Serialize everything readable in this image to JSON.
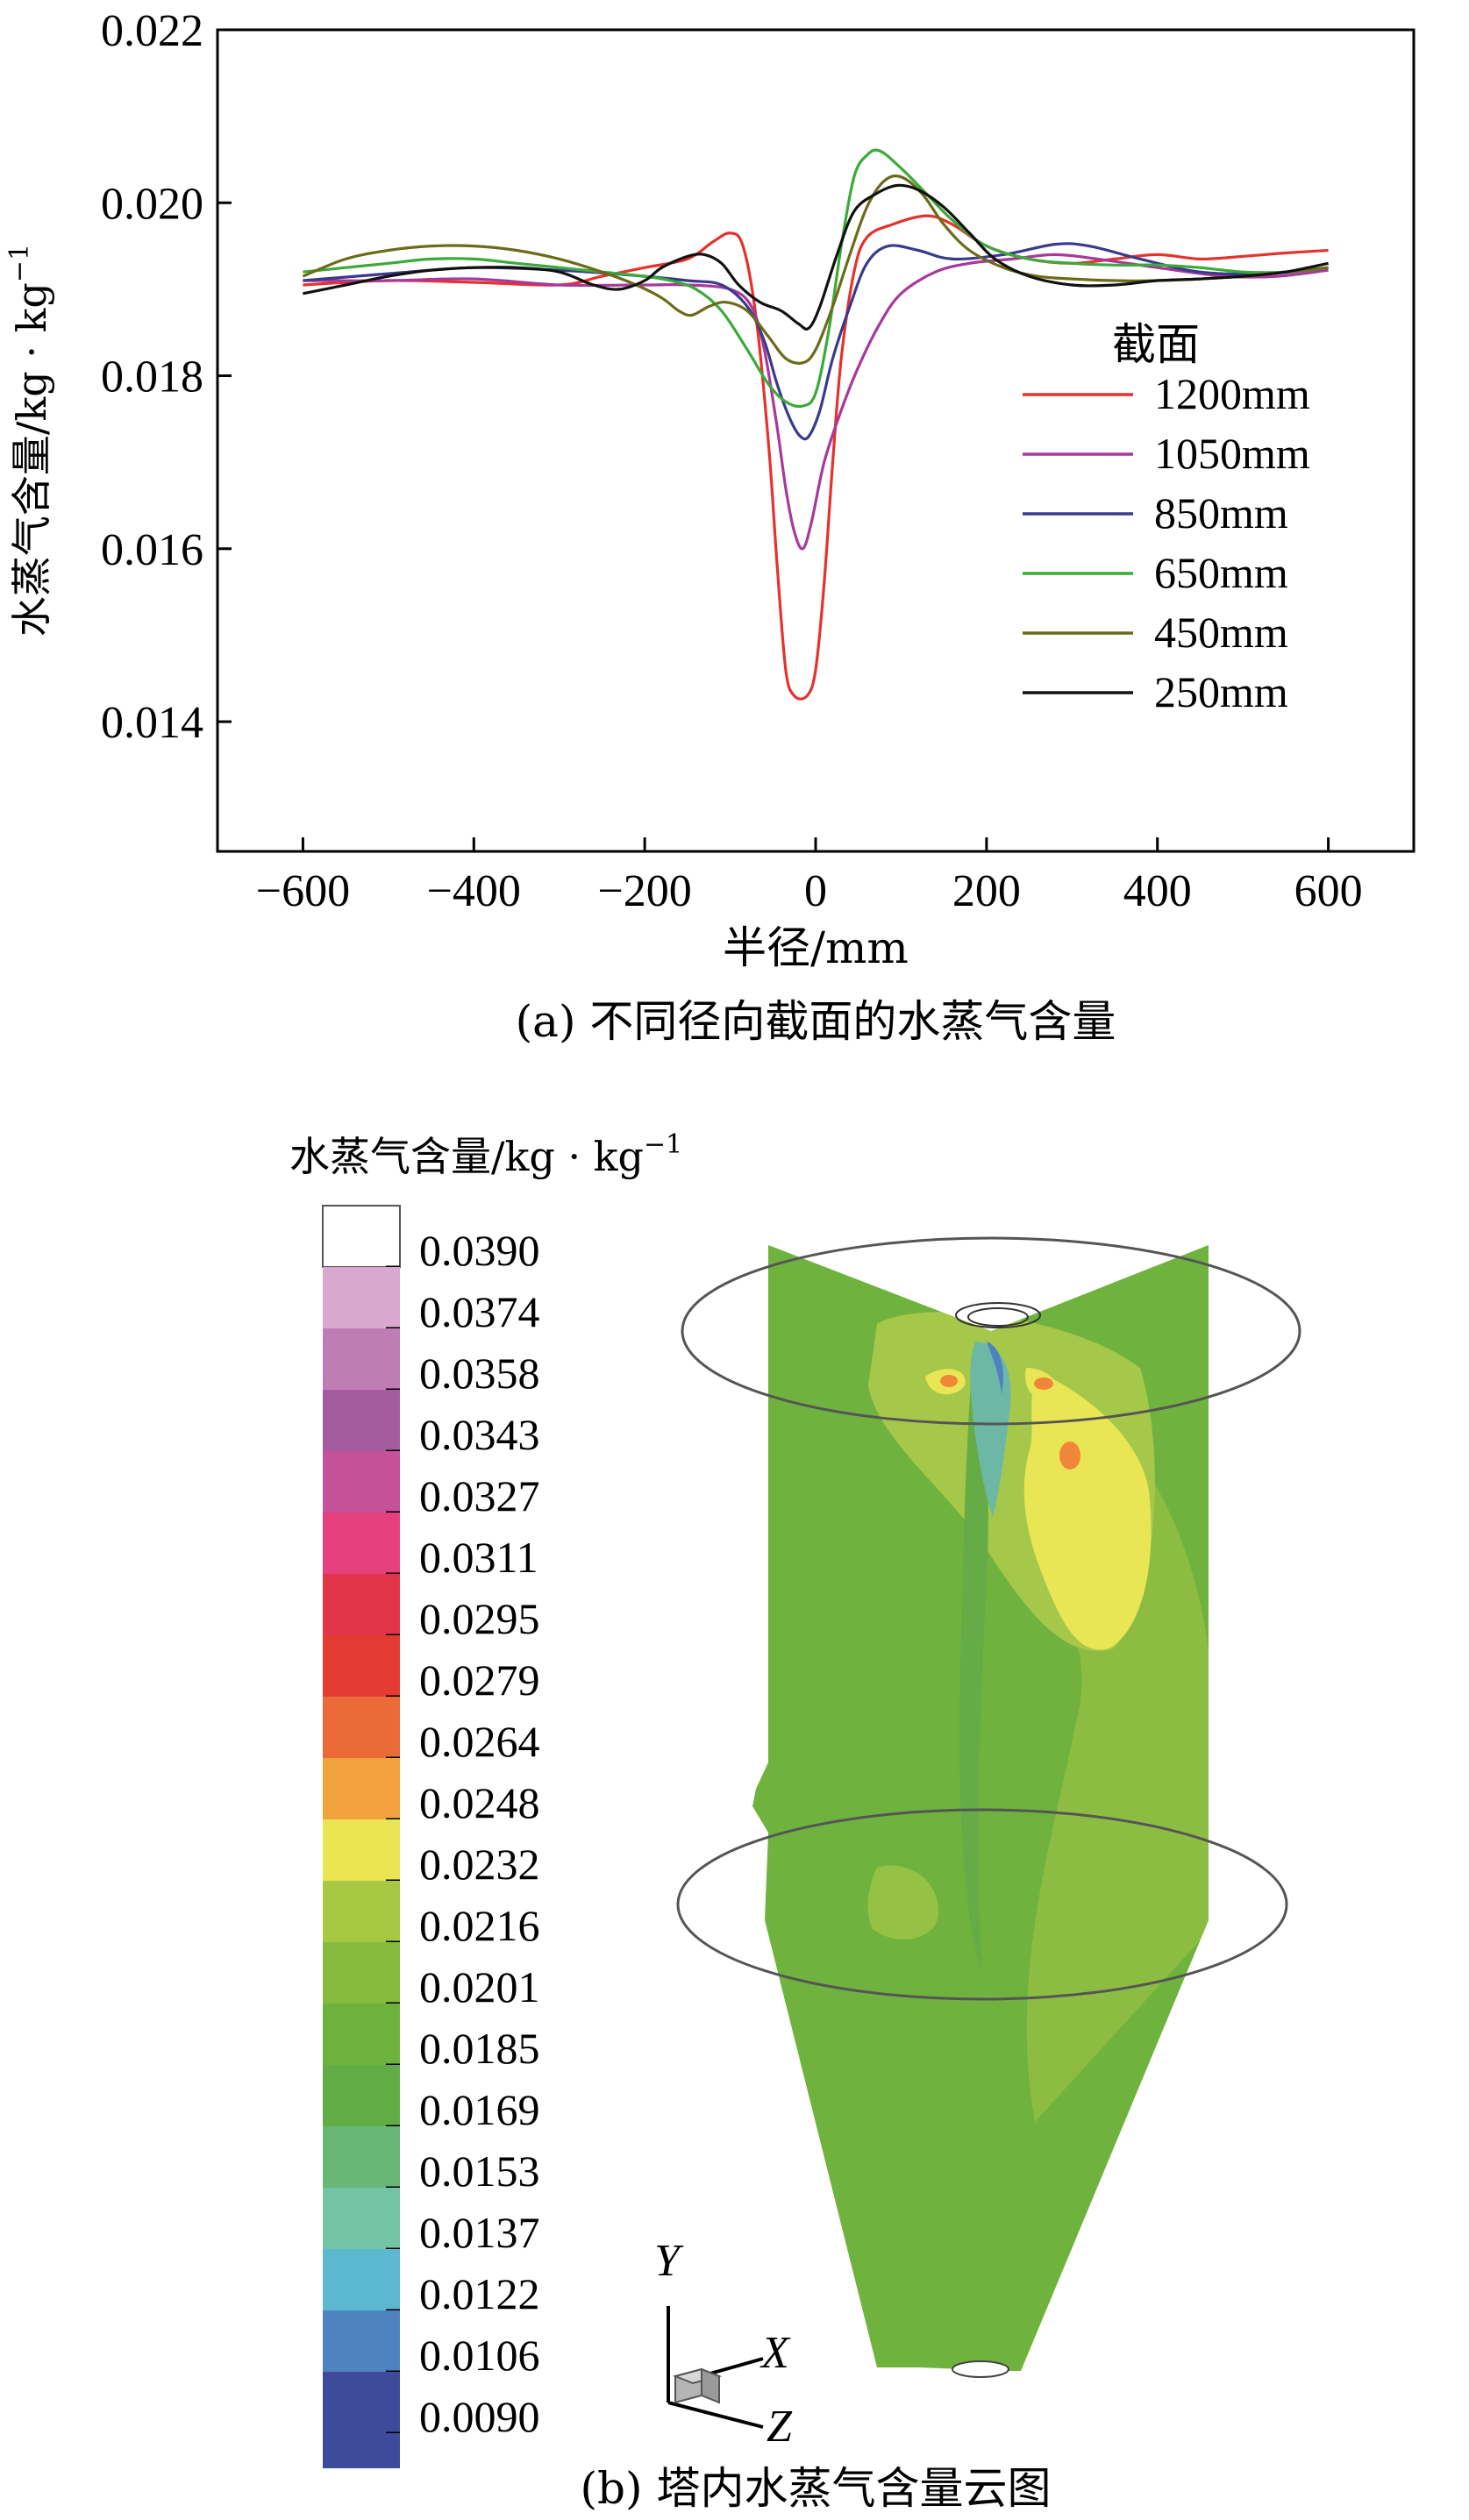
{
  "chart_data": [
    {
      "type": "line",
      "title": "",
      "caption": "(a) 不同径向截面的水蒸气含量",
      "xlabel": "半径/mm",
      "ylabel_main": "水蒸气含量/kg · kg",
      "ylabel_sup": "−1",
      "xlim": [
        -700,
        700
      ],
      "ylim": [
        0.0125,
        0.022
      ],
      "xticks": [
        {
          "value": -600,
          "label": "−600"
        },
        {
          "value": -400,
          "label": "−400"
        },
        {
          "value": -200,
          "label": "−200"
        },
        {
          "value": 0,
          "label": "0"
        },
        {
          "value": 200,
          "label": "200"
        },
        {
          "value": 400,
          "label": "400"
        },
        {
          "value": 600,
          "label": "600"
        }
      ],
      "yticks": [
        {
          "value": 0.014,
          "label": "0.014"
        },
        {
          "value": 0.016,
          "label": "0.016"
        },
        {
          "value": 0.018,
          "label": "0.018"
        },
        {
          "value": 0.02,
          "label": "0.020"
        },
        {
          "value": 0.022,
          "label": "0.022"
        }
      ],
      "grid": false,
      "legend_position": "right",
      "legend_title": "截面",
      "series": [
        {
          "name": "1200mm",
          "color": "#e5322d",
          "points": [
            [
              -600,
              0.01905
            ],
            [
              -500,
              0.0191
            ],
            [
              -400,
              0.01908
            ],
            [
              -300,
              0.01905
            ],
            [
              -250,
              0.01915
            ],
            [
              -200,
              0.01925
            ],
            [
              -150,
              0.01935
            ],
            [
              -120,
              0.01955
            ],
            [
              -100,
              0.01965
            ],
            [
              -85,
              0.0195
            ],
            [
              -70,
              0.0187
            ],
            [
              -55,
              0.0172
            ],
            [
              -45,
              0.0158
            ],
            [
              -35,
              0.0146
            ],
            [
              -25,
              0.0143
            ],
            [
              -10,
              0.0143
            ],
            [
              0,
              0.0146
            ],
            [
              10,
              0.0156
            ],
            [
              20,
              0.017
            ],
            [
              30,
              0.0182
            ],
            [
              45,
              0.0192
            ],
            [
              60,
              0.0196
            ],
            [
              90,
              0.01975
            ],
            [
              130,
              0.01985
            ],
            [
              160,
              0.01975
            ],
            [
              200,
              0.0195
            ],
            [
              250,
              0.01935
            ],
            [
              300,
              0.0193
            ],
            [
              350,
              0.01935
            ],
            [
              400,
              0.0194
            ],
            [
              450,
              0.01935
            ],
            [
              500,
              0.01938
            ],
            [
              550,
              0.01942
            ],
            [
              600,
              0.01945
            ]
          ]
        },
        {
          "name": "1050mm",
          "color": "#a8399a",
          "points": [
            [
              -600,
              0.0191
            ],
            [
              -500,
              0.0191
            ],
            [
              -400,
              0.01912
            ],
            [
              -300,
              0.01905
            ],
            [
              -200,
              0.01905
            ],
            [
              -150,
              0.01905
            ],
            [
              -100,
              0.019
            ],
            [
              -75,
              0.0188
            ],
            [
              -60,
              0.0183
            ],
            [
              -45,
              0.0174
            ],
            [
              -35,
              0.0167
            ],
            [
              -25,
              0.0162
            ],
            [
              -15,
              0.016
            ],
            [
              -5,
              0.0163
            ],
            [
              10,
              0.017
            ],
            [
              30,
              0.0176
            ],
            [
              50,
              0.0181
            ],
            [
              75,
              0.0186
            ],
            [
              100,
              0.01895
            ],
            [
              140,
              0.0192
            ],
            [
              180,
              0.0193
            ],
            [
              230,
              0.01935
            ],
            [
              280,
              0.0194
            ],
            [
              330,
              0.01935
            ],
            [
              400,
              0.01925
            ],
            [
              480,
              0.01915
            ],
            [
              540,
              0.01915
            ],
            [
              600,
              0.01922
            ]
          ]
        },
        {
          "name": "850mm",
          "color": "#3a3a8c",
          "points": [
            [
              -600,
              0.0191
            ],
            [
              -500,
              0.01918
            ],
            [
              -400,
              0.01925
            ],
            [
              -300,
              0.01922
            ],
            [
              -200,
              0.01915
            ],
            [
              -150,
              0.0191
            ],
            [
              -110,
              0.01905
            ],
            [
              -80,
              0.0188
            ],
            [
              -60,
              0.0184
            ],
            [
              -45,
              0.0179
            ],
            [
              -30,
              0.0175
            ],
            [
              -18,
              0.0173
            ],
            [
              -8,
              0.0173
            ],
            [
              5,
              0.0176
            ],
            [
              20,
              0.0182
            ],
            [
              40,
              0.0188
            ],
            [
              60,
              0.0193
            ],
            [
              85,
              0.0195
            ],
            [
              120,
              0.01945
            ],
            [
              160,
              0.01935
            ],
            [
              220,
              0.0194
            ],
            [
              280,
              0.01952
            ],
            [
              320,
              0.0195
            ],
            [
              380,
              0.01935
            ],
            [
              450,
              0.0192
            ],
            [
              530,
              0.01918
            ],
            [
              600,
              0.01925
            ]
          ]
        },
        {
          "name": "650mm",
          "color": "#3aaa3a",
          "points": [
            [
              -600,
              0.0192
            ],
            [
              -550,
              0.01925
            ],
            [
              -500,
              0.0193
            ],
            [
              -450,
              0.01935
            ],
            [
              -400,
              0.01935
            ],
            [
              -350,
              0.0193
            ],
            [
              -300,
              0.01925
            ],
            [
              -250,
              0.0192
            ],
            [
              -200,
              0.01915
            ],
            [
              -170,
              0.0191
            ],
            [
              -140,
              0.019
            ],
            [
              -110,
              0.01875
            ],
            [
              -80,
              0.0183
            ],
            [
              -55,
              0.0179
            ],
            [
              -35,
              0.0177
            ],
            [
              -15,
              0.01765
            ],
            [
              0,
              0.0178
            ],
            [
              15,
              0.0185
            ],
            [
              30,
              0.0195
            ],
            [
              45,
              0.0203
            ],
            [
              60,
              0.02055
            ],
            [
              75,
              0.0206
            ],
            [
              100,
              0.0204
            ],
            [
              130,
              0.0201
            ],
            [
              160,
              0.0198
            ],
            [
              200,
              0.0195
            ],
            [
              250,
              0.01935
            ],
            [
              300,
              0.0193
            ],
            [
              350,
              0.01928
            ],
            [
              400,
              0.01928
            ],
            [
              450,
              0.01925
            ],
            [
              500,
              0.0192
            ],
            [
              550,
              0.0192
            ],
            [
              600,
              0.01925
            ]
          ]
        },
        {
          "name": "450mm",
          "color": "#6b6b1a",
          "points": [
            [
              -600,
              0.01915
            ],
            [
              -550,
              0.01935
            ],
            [
              -500,
              0.01945
            ],
            [
              -450,
              0.0195
            ],
            [
              -400,
              0.0195
            ],
            [
              -350,
              0.01945
            ],
            [
              -300,
              0.01935
            ],
            [
              -250,
              0.0192
            ],
            [
              -210,
              0.01905
            ],
            [
              -180,
              0.0189
            ],
            [
              -160,
              0.01875
            ],
            [
              -145,
              0.0187
            ],
            [
              -125,
              0.0188
            ],
            [
              -105,
              0.01885
            ],
            [
              -80,
              0.01875
            ],
            [
              -55,
              0.01845
            ],
            [
              -35,
              0.0182
            ],
            [
              -15,
              0.01815
            ],
            [
              0,
              0.0183
            ],
            [
              20,
              0.0188
            ],
            [
              40,
              0.0194
            ],
            [
              60,
              0.01995
            ],
            [
              80,
              0.02025
            ],
            [
              100,
              0.0203
            ],
            [
              125,
              0.0201
            ],
            [
              150,
              0.01975
            ],
            [
              180,
              0.01945
            ],
            [
              220,
              0.01925
            ],
            [
              260,
              0.01915
            ],
            [
              300,
              0.01912
            ],
            [
              350,
              0.0191
            ],
            [
              400,
              0.0191
            ],
            [
              450,
              0.01912
            ],
            [
              500,
              0.01915
            ],
            [
              550,
              0.0192
            ],
            [
              600,
              0.01925
            ]
          ]
        },
        {
          "name": "250mm",
          "color": "#111111",
          "points": [
            [
              -600,
              0.01895
            ],
            [
              -550,
              0.01905
            ],
            [
              -500,
              0.01915
            ],
            [
              -450,
              0.01922
            ],
            [
              -400,
              0.01925
            ],
            [
              -350,
              0.01925
            ],
            [
              -300,
              0.0192
            ],
            [
              -260,
              0.01905
            ],
            [
              -230,
              0.019
            ],
            [
              -200,
              0.0191
            ],
            [
              -180,
              0.01925
            ],
            [
              -150,
              0.01938
            ],
            [
              -130,
              0.0194
            ],
            [
              -110,
              0.0193
            ],
            [
              -90,
              0.01905
            ],
            [
              -65,
              0.01885
            ],
            [
              -40,
              0.01875
            ],
            [
              -20,
              0.0186
            ],
            [
              -8,
              0.01855
            ],
            [
              5,
              0.0188
            ],
            [
              25,
              0.0194
            ],
            [
              45,
              0.0199
            ],
            [
              70,
              0.0201
            ],
            [
              95,
              0.0202
            ],
            [
              120,
              0.02015
            ],
            [
              150,
              0.01995
            ],
            [
              180,
              0.01965
            ],
            [
              210,
              0.01935
            ],
            [
              250,
              0.01915
            ],
            [
              300,
              0.01905
            ],
            [
              350,
              0.01905
            ],
            [
              400,
              0.0191
            ],
            [
              450,
              0.01912
            ],
            [
              500,
              0.01915
            ],
            [
              550,
              0.0192
            ],
            [
              600,
              0.0193
            ]
          ]
        }
      ]
    },
    {
      "type": "heatmap",
      "caption": "(b) 塔内水蒸气含量云图",
      "colorbar_title_main": "水蒸气含量/kg · kg",
      "colorbar_title_sup": "−1",
      "colorbar_levels": [
        {
          "label": "0.0390",
          "color": "#ffffff"
        },
        {
          "label": "0.0374",
          "color": "#d8a8cf"
        },
        {
          "label": "0.0358",
          "color": "#bf7db5"
        },
        {
          "label": "0.0343",
          "color": "#a45c9e"
        },
        {
          "label": "0.0327",
          "color": "#c45199"
        },
        {
          "label": "0.0311",
          "color": "#e6407e"
        },
        {
          "label": "0.0295",
          "color": "#e3354a"
        },
        {
          "label": "0.0279",
          "color": "#e33b32"
        },
        {
          "label": "0.0264",
          "color": "#ea6a38"
        },
        {
          "label": "0.0248",
          "color": "#f2a23c"
        },
        {
          "label": "0.0232",
          "color": "#eae552"
        },
        {
          "label": "0.0216",
          "color": "#a7c843"
        },
        {
          "label": "0.0201",
          "color": "#86bb3d"
        },
        {
          "label": "0.0185",
          "color": "#6eb23e"
        },
        {
          "label": "0.0169",
          "color": "#62ac46"
        },
        {
          "label": "0.0153",
          "color": "#68b777"
        },
        {
          "label": "0.0137",
          "color": "#73c3a4"
        },
        {
          "label": "0.0122",
          "color": "#5bb8cf"
        },
        {
          "label": "0.0106",
          "color": "#4e83c0"
        },
        {
          "label": "0.0090",
          "color": "#3d4b9a"
        }
      ],
      "axes_labels": {
        "y": "Y",
        "x": "X",
        "z": "Z"
      }
    }
  ]
}
